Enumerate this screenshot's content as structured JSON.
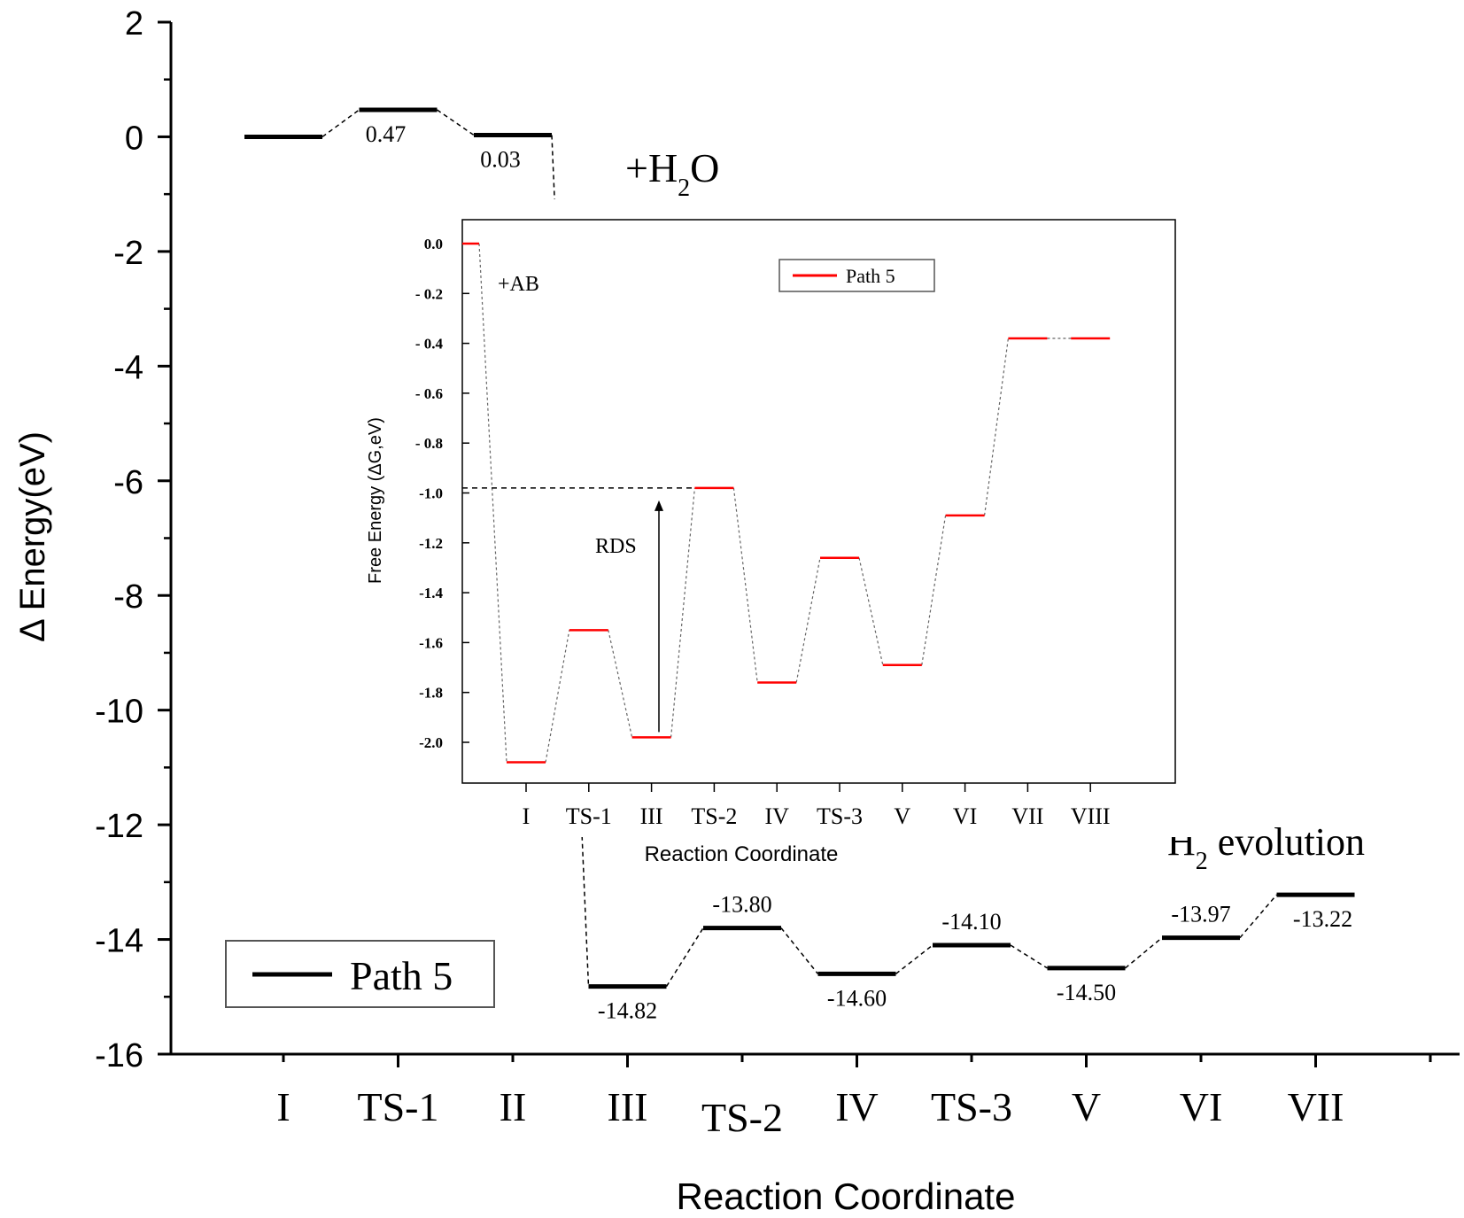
{
  "chart_data": [
    {
      "type": "energy-profile",
      "title": "",
      "xlabel": "Reaction Coordinate",
      "ylabel": "Δ Energy(eV)",
      "ylim": [
        -16,
        2
      ],
      "yticks": [
        "2",
        "0",
        "-2",
        "-4",
        "-6",
        "-8",
        "-10",
        "-12",
        "-14",
        "-16"
      ],
      "categories": [
        "I",
        "TS-1",
        "II",
        "III",
        "TS-2",
        "IV",
        "TS-3",
        "V",
        "VI",
        "VII"
      ],
      "series": [
        {
          "name": "Path 5",
          "color": "#000000",
          "values": [
            0,
            0.47,
            0.03,
            -14.82,
            -13.8,
            -14.6,
            -14.1,
            -14.5,
            -13.97,
            -13.22
          ],
          "labels": [
            "",
            "0.47",
            "0.03",
            "-14.82",
            "-13.80",
            "-14.60",
            "-14.10",
            "-14.50",
            "-13.97",
            "-13.22"
          ]
        }
      ],
      "legend": {
        "label": "Path 5",
        "position": "bottom-left"
      },
      "annotations": {
        "water": "+H",
        "water_sub": "2",
        "water_tail": "O",
        "h2": "H",
        "h2_sub": "2",
        "h2_tail": " evolution"
      }
    },
    {
      "type": "energy-profile",
      "title": "",
      "xlabel": "Reaction Coordinate",
      "ylabel": "Free Energy (ΔG,eV)",
      "ylim": [
        -2.2,
        0.05
      ],
      "yticks": [
        "0.0",
        "- 0.2",
        "- 0.4",
        "- 0.6",
        "- 0.8",
        "-1.0",
        "-1.2",
        "-1.4",
        "-1.6",
        "-1.8",
        "-2.0"
      ],
      "categories": [
        "I",
        "TS-1",
        "III",
        "TS-2",
        "IV",
        "TS-3",
        "V",
        "VI",
        "VII",
        "VIII"
      ],
      "series": [
        {
          "name": "Path 5",
          "color": "#ff0000",
          "start": 0.0,
          "values": [
            -2.08,
            -1.55,
            -1.98,
            -0.98,
            -1.76,
            -1.26,
            -1.69,
            -1.09,
            -0.38,
            -0.38
          ]
        }
      ],
      "legend": {
        "label": "Path 5",
        "position": "top-right"
      },
      "annotations": {
        "ab": "+AB",
        "rds": "RDS"
      }
    }
  ]
}
